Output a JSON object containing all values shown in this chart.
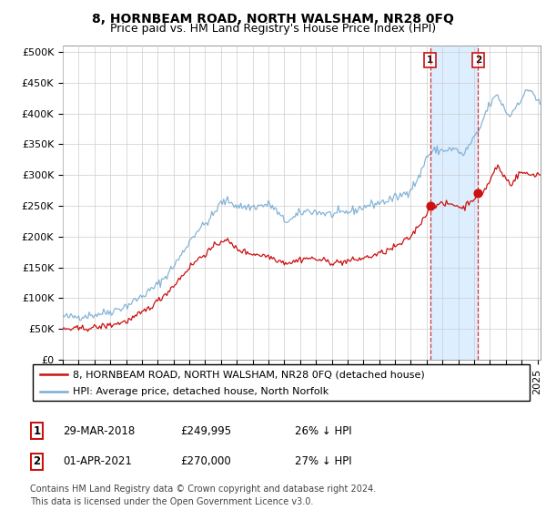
{
  "title": "8, HORNBEAM ROAD, NORTH WALSHAM, NR28 0FQ",
  "subtitle": "Price paid vs. HM Land Registry's House Price Index (HPI)",
  "ylabel_ticks": [
    "£0",
    "£50K",
    "£100K",
    "£150K",
    "£200K",
    "£250K",
    "£300K",
    "£350K",
    "£400K",
    "£450K",
    "£500K"
  ],
  "ytick_values": [
    0,
    50000,
    100000,
    150000,
    200000,
    250000,
    300000,
    350000,
    400000,
    450000,
    500000
  ],
  "ylim": [
    0,
    510000
  ],
  "xlim_start": 1995.0,
  "xlim_end": 2025.2,
  "hpi_color": "#7aadd4",
  "price_color": "#cc1111",
  "annotation_color": "#cc1111",
  "bg_color": "#ffffff",
  "shade_color": "#ddeeff",
  "grid_color": "#cccccc",
  "legend_label_price": "8, HORNBEAM ROAD, NORTH WALSHAM, NR28 0FQ (detached house)",
  "legend_label_hpi": "HPI: Average price, detached house, North Norfolk",
  "sale1_date": 2018.22,
  "sale1_price": 249995,
  "sale1_label": "1",
  "sale2_date": 2021.25,
  "sale2_price": 270000,
  "sale2_label": "2",
  "table_rows": [
    {
      "num": "1",
      "date": "29-MAR-2018",
      "price": "£249,995",
      "hpi": "26% ↓ HPI"
    },
    {
      "num": "2",
      "date": "01-APR-2021",
      "price": "£270,000",
      "hpi": "27% ↓ HPI"
    }
  ],
  "footer": "Contains HM Land Registry data © Crown copyright and database right 2024.\nThis data is licensed under the Open Government Licence v3.0.",
  "title_fontsize": 10,
  "subtitle_fontsize": 9,
  "tick_fontsize": 8,
  "legend_fontsize": 8,
  "table_fontsize": 8.5,
  "footer_fontsize": 7
}
